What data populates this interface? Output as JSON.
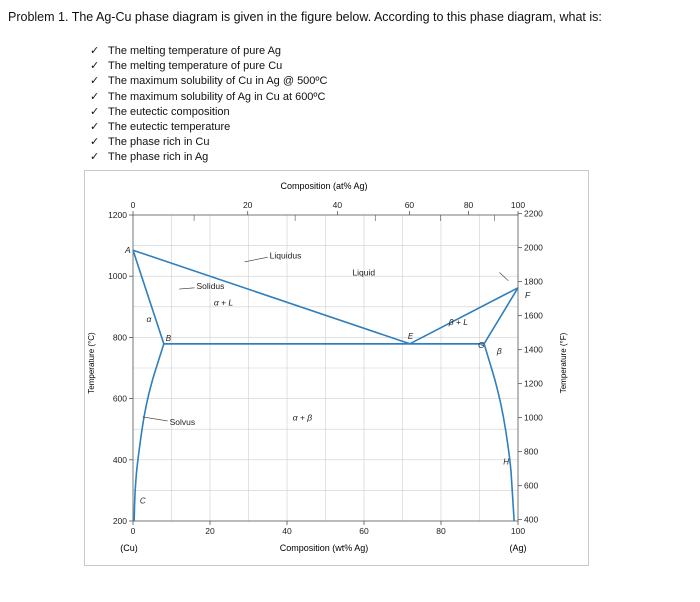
{
  "problem": {
    "title": "Problem 1. The Ag-Cu phase diagram is given in the figure below. According to this phase diagram, what is:",
    "check_mark": "✓",
    "items": [
      "The melting temperature of pure Ag",
      "The melting temperature of pure Cu",
      "The maximum solubility of Cu in Ag @ 500ºC",
      "The maximum solubility of Ag in Cu at 600ºC",
      "The eutectic composition",
      "The eutectic temperature",
      "The phase rich in Cu",
      "The phase rich in Ag"
    ]
  },
  "figure": {
    "top_axis_title": "Composition (at% Ag)",
    "top_ticks": [
      "0",
      "20",
      "40",
      "60",
      "80",
      "100"
    ],
    "bottom_axis_title": "Composition (wt% Ag)",
    "bottom_ticks": [
      "0",
      "20",
      "40",
      "60",
      "80",
      "100"
    ],
    "bottom_end_labels": [
      "(Cu)",
      "(Ag)"
    ],
    "left_axis_title": "Temperature (°C)",
    "left_ticks": [
      "1200",
      "1000",
      "800",
      "600",
      "400",
      "200"
    ],
    "right_axis_title": "Temperature (°F)",
    "right_ticks": [
      "2200",
      "2000",
      "1800",
      "1600",
      "1400",
      "1200",
      "1000",
      "800",
      "600",
      "400"
    ],
    "labels": {
      "liquidus": "Liquidus",
      "liquid": "Liquid",
      "solidus": "Solidus",
      "alpha_liquid": "α + L",
      "beta_liquid": "β + L",
      "alpha": "α",
      "beta": "β",
      "alpha_beta": "α + β",
      "solvus": "Solvus",
      "point_a": "A",
      "point_b": "B",
      "point_c": "C",
      "point_e": "E",
      "point_f": "F",
      "point_g": "G",
      "point_h": "H"
    },
    "colors": {
      "phase_line": "#2f7fbf",
      "grid": "#cfcfcf",
      "axis": "#555555"
    }
  },
  "chart_data": {
    "type": "phase-diagram",
    "title": "",
    "xlabel": "Composition (wt% Ag)",
    "x2label": "Composition (at% Ag)",
    "ylabel": "Temperature (°C)",
    "y2label": "Temperature (°F)",
    "xlim": [
      0,
      100
    ],
    "ylim": [
      200,
      1200
    ],
    "grid": true,
    "points": {
      "A": [
        0,
        1085
      ],
      "B": [
        8.0,
        779
      ],
      "C": [
        0.5,
        300
      ],
      "E": [
        71.9,
        779
      ],
      "F": [
        100,
        962
      ],
      "G": [
        91.2,
        779
      ],
      "H": [
        98.5,
        300
      ]
    },
    "series": [
      {
        "name": "Liquidus",
        "x": [
          0,
          71.9,
          100
        ],
        "y": [
          1085,
          779,
          962
        ]
      },
      {
        "name": "Solidus",
        "x": [
          0,
          8.0,
          8.0,
          91.2,
          91.2,
          100
        ],
        "y": [
          1085,
          779,
          779,
          779,
          779,
          962
        ]
      },
      {
        "name": "Solvus",
        "x": [
          8.0,
          3.5,
          1.2,
          0.5,
          0.3
        ],
        "y": [
          779,
          600,
          400,
          300,
          200
        ]
      },
      {
        "name": "Solvus",
        "x": [
          91.2,
          95.5,
          98.0,
          98.5,
          99.0
        ],
        "y": [
          779,
          600,
          400,
          300,
          200
        ]
      },
      {
        "name": "Eutectic isotherm",
        "x": [
          8.0,
          91.2
        ],
        "y": [
          779,
          779
        ]
      }
    ]
  }
}
